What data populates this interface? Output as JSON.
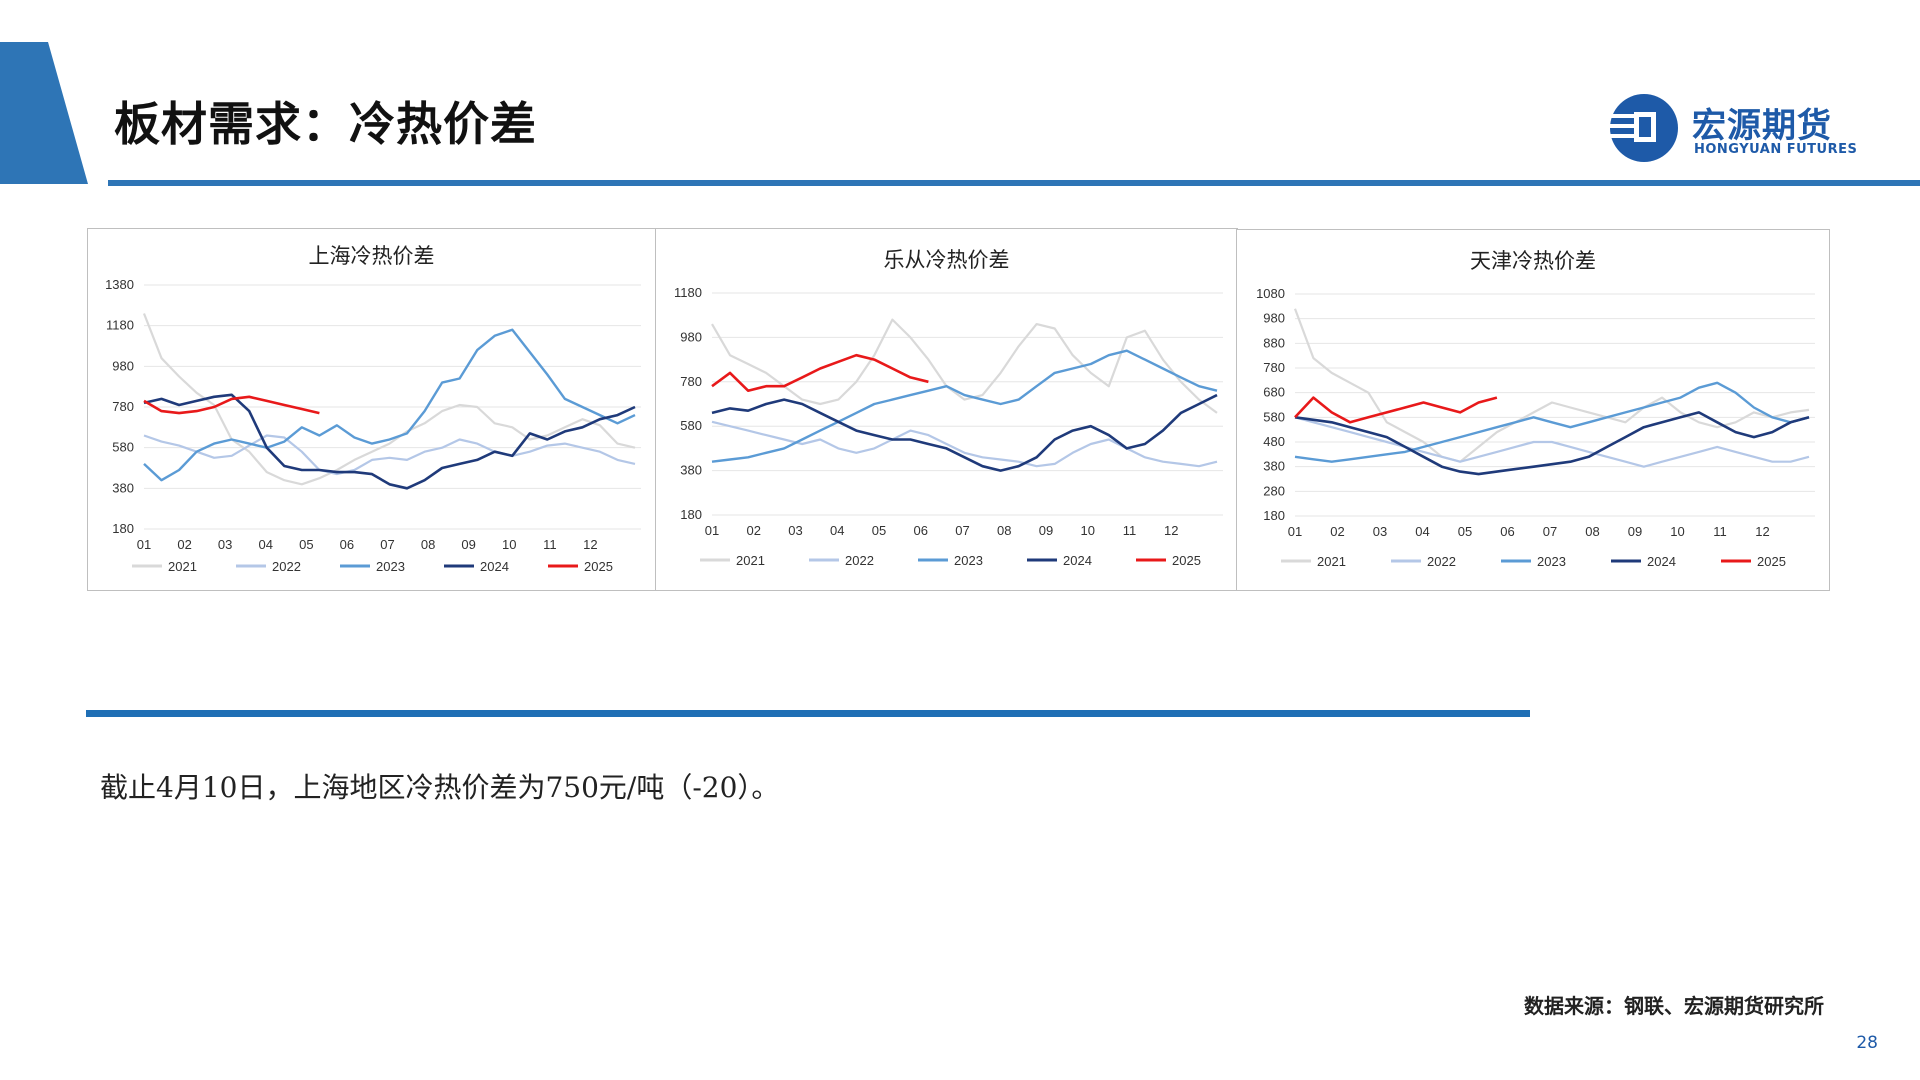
{
  "header": {
    "title": "板材需求：冷热价差"
  },
  "logo": {
    "name_cn": "宏源期货",
    "name_en": "HONGYUAN FUTURES",
    "icon": "hongyuan-logo-icon"
  },
  "colors": {
    "accent": "#2e75b6",
    "s2021": "#d9d9d9",
    "s2022": "#b4c7e7",
    "s2023": "#5b9bd5",
    "s2024": "#1f3a7a",
    "s2025": "#e8191a"
  },
  "chart_data": [
    {
      "type": "line",
      "title": "上海冷热价差",
      "x_ticks": [
        "01",
        "02",
        "03",
        "04",
        "05",
        "06",
        "07",
        "08",
        "09",
        "10",
        "11",
        "12"
      ],
      "y_ticks": [
        180,
        380,
        580,
        780,
        980,
        1180,
        1380
      ],
      "ylim": [
        180,
        1380
      ],
      "legend": "bottom",
      "series": [
        {
          "name": "2021",
          "values": [
            1240,
            1020,
            930,
            850,
            790,
            620,
            560,
            460,
            420,
            400,
            430,
            470,
            520,
            560,
            600,
            660,
            700,
            760,
            790,
            780,
            700,
            680,
            620,
            640,
            680,
            720,
            690,
            600,
            580
          ]
        },
        {
          "name": "2022",
          "values": [
            640,
            610,
            590,
            560,
            530,
            540,
            590,
            640,
            630,
            560,
            470,
            450,
            470,
            520,
            530,
            520,
            560,
            580,
            620,
            600,
            560,
            540,
            560,
            590,
            600,
            580,
            560,
            520,
            500
          ]
        },
        {
          "name": "2023",
          "values": [
            500,
            420,
            470,
            560,
            600,
            620,
            600,
            580,
            610,
            680,
            640,
            690,
            630,
            600,
            620,
            650,
            760,
            900,
            920,
            1060,
            1130,
            1160,
            1050,
            940,
            820,
            780,
            740,
            700,
            740
          ]
        },
        {
          "name": "2024",
          "values": [
            800,
            820,
            790,
            810,
            830,
            840,
            760,
            580,
            490,
            470,
            470,
            460,
            460,
            450,
            400,
            380,
            420,
            480,
            500,
            520,
            560,
            540,
            650,
            620,
            660,
            680,
            720,
            740,
            780
          ]
        },
        {
          "name": "2025",
          "values": [
            810,
            760,
            750,
            760,
            780,
            820,
            830,
            810,
            790,
            770,
            750
          ]
        }
      ]
    },
    {
      "type": "line",
      "title": "乐从冷热价差",
      "x_ticks": [
        "01",
        "02",
        "03",
        "04",
        "05",
        "06",
        "07",
        "08",
        "09",
        "10",
        "11",
        "12"
      ],
      "y_ticks": [
        180,
        380,
        580,
        780,
        980,
        1180
      ],
      "ylim": [
        180,
        1180
      ],
      "legend": "bottom",
      "series": [
        {
          "name": "2021",
          "values": [
            1040,
            900,
            860,
            820,
            760,
            700,
            680,
            700,
            780,
            900,
            1060,
            980,
            880,
            760,
            700,
            720,
            820,
            940,
            1040,
            1020,
            900,
            820,
            760,
            980,
            1010,
            880,
            780,
            700,
            640
          ]
        },
        {
          "name": "2022",
          "values": [
            600,
            580,
            560,
            540,
            520,
            500,
            520,
            480,
            460,
            480,
            520,
            560,
            540,
            500,
            460,
            440,
            430,
            420,
            400,
            410,
            460,
            500,
            520,
            480,
            440,
            420,
            410,
            400,
            420
          ]
        },
        {
          "name": "2023",
          "values": [
            420,
            430,
            440,
            460,
            480,
            520,
            560,
            600,
            640,
            680,
            700,
            720,
            740,
            760,
            720,
            700,
            680,
            700,
            760,
            820,
            840,
            860,
            900,
            920,
            880,
            840,
            800,
            760,
            740
          ]
        },
        {
          "name": "2024",
          "values": [
            640,
            660,
            650,
            680,
            700,
            680,
            640,
            600,
            560,
            540,
            520,
            520,
            500,
            480,
            440,
            400,
            380,
            400,
            440,
            520,
            560,
            580,
            540,
            480,
            500,
            560,
            640,
            680,
            720
          ]
        },
        {
          "name": "2025",
          "values": [
            760,
            820,
            740,
            760,
            760,
            800,
            840,
            870,
            900,
            880,
            840,
            800,
            780
          ]
        }
      ]
    },
    {
      "type": "line",
      "title": "天津冷热价差",
      "x_ticks": [
        "01",
        "02",
        "03",
        "04",
        "05",
        "06",
        "07",
        "08",
        "09",
        "10",
        "11",
        "12"
      ],
      "y_ticks": [
        180,
        280,
        380,
        480,
        580,
        680,
        780,
        880,
        980,
        1080
      ],
      "ylim": [
        180,
        1080
      ],
      "legend": "bottom",
      "series": [
        {
          "name": "2021",
          "values": [
            1020,
            820,
            760,
            720,
            680,
            560,
            520,
            480,
            420,
            400,
            460,
            520,
            560,
            600,
            640,
            620,
            600,
            580,
            560,
            620,
            660,
            600,
            560,
            540,
            560,
            600,
            580,
            600,
            610
          ]
        },
        {
          "name": "2022",
          "values": [
            580,
            560,
            540,
            520,
            500,
            480,
            460,
            440,
            420,
            400,
            420,
            440,
            460,
            480,
            480,
            460,
            440,
            420,
            400,
            380,
            400,
            420,
            440,
            460,
            440,
            420,
            400,
            400,
            420
          ]
        },
        {
          "name": "2023",
          "values": [
            420,
            410,
            400,
            410,
            420,
            430,
            440,
            460,
            480,
            500,
            520,
            540,
            560,
            580,
            560,
            540,
            560,
            580,
            600,
            620,
            640,
            660,
            700,
            720,
            680,
            620,
            580,
            560,
            580
          ]
        },
        {
          "name": "2024",
          "values": [
            580,
            570,
            560,
            540,
            520,
            500,
            460,
            420,
            380,
            360,
            350,
            360,
            370,
            380,
            390,
            400,
            420,
            460,
            500,
            540,
            560,
            580,
            600,
            560,
            520,
            500,
            520,
            560,
            580
          ]
        },
        {
          "name": "2025",
          "values": [
            580,
            660,
            600,
            560,
            580,
            600,
            620,
            640,
            620,
            600,
            640,
            660
          ]
        }
      ]
    }
  ],
  "note": {
    "text": "截止4月10日，上海地区冷热价差为750元/吨（-20）。"
  },
  "source": {
    "text": "数据来源：钢联、宏源期货研究所"
  },
  "page": {
    "number": "28"
  }
}
